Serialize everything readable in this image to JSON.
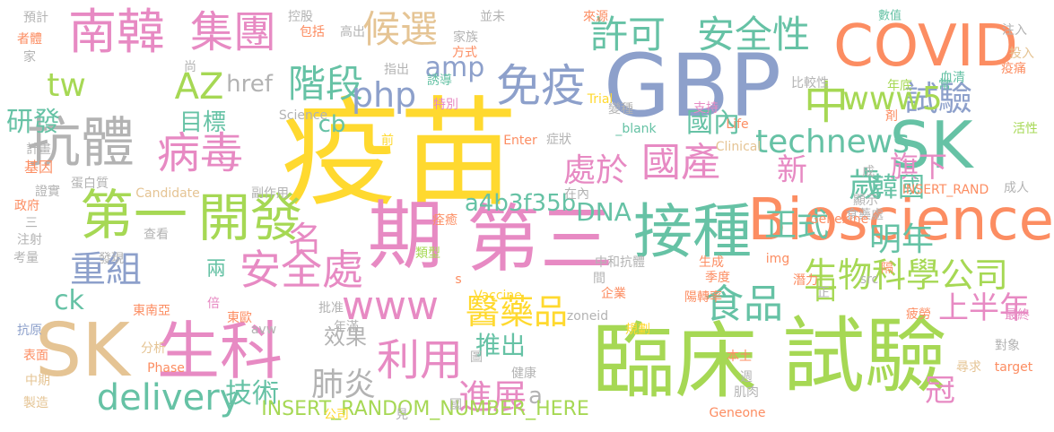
{
  "colors": {
    "yellow": "#FFD92F",
    "green": "#A6D854",
    "pink": "#E78AC3",
    "blue": "#8DA0CB",
    "orange": "#FC8D62",
    "teal": "#66C2A5",
    "tan": "#E5C494",
    "gray": "#B3B3B3"
  },
  "words": [
    "疫苗",
    "臨床",
    "試驗",
    "期",
    "GBP",
    "SK",
    "生科",
    "COVID",
    "南韓",
    "第三",
    "第一",
    "開發",
    "接種",
    "Bioscience",
    "免疫",
    "食品",
    "集團",
    "候選",
    "許可",
    "安全性",
    "階段",
    "病毒",
    "國產",
    "名",
    "安全處",
    "抗體",
    "AZ",
    "tw",
    "php",
    "amp",
    "試驗",
    "中",
    "www5",
    "SK",
    "technews",
    "delivery",
    "重組",
    "利用",
    "www",
    "醫藥品",
    "生物科學公司",
    "目標",
    "明年",
    "處於",
    "新",
    "歲",
    "旗下",
    "正式",
    "韓國",
    "a4b3f35b",
    "DNA",
    "國內",
    "肺炎",
    "效果",
    "進展",
    "推出",
    "技術",
    "冠",
    "上半年",
    "ck",
    "日",
    "兩",
    "href",
    "cb",
    "研發",
    "a",
    "INSERT_RANDOM_NUMBER_HERE",
    "數值",
    "控股",
    "並未",
    "來源",
    "包括",
    "家族",
    "高出",
    "方式",
    "預計",
    "者體",
    "注入",
    "疫痛",
    "血清",
    "_blank",
    "活性",
    "誘導",
    "特別",
    "支持",
    "年底",
    "Life",
    "投入",
    "剤",
    "比較性",
    "計畫",
    "基因",
    "Enter",
    "症狀",
    "Clinical",
    "Trial",
    "Science",
    "Candidate",
    "查看",
    "蛋白質",
    "政府",
    "副作用",
    "在內",
    "顯示",
    "食藥處",
    "成人",
    "INSERT_RAND",
    "發現",
    "考量",
    "注射",
    "痊癒",
    "Genexine",
    "Vaccine",
    "陽轉率",
    "潛力",
    "季度",
    "企業",
    "生成",
    "img",
    "src",
    "類型",
    "中和抗體",
    "東南亞",
    "倍",
    "東歐",
    "抗原",
    "年滿",
    "批准",
    "zoneid",
    "疲勞",
    "最終",
    "表面",
    "分析",
    "Phase",
    "規劃",
    "本土",
    "target",
    "尋求",
    "中期",
    "製造",
    "健康",
    "週",
    "肌肉",
    "Geneone",
    "公司",
    "見",
    "圖",
    "國",
    "間",
    "指出",
    "變種",
    "尚",
    "證實",
    "三",
    "常",
    "正",
    "隔",
    "對象",
    "avw",
    "s",
    "前",
    "家",
    "成"
  ]
}
